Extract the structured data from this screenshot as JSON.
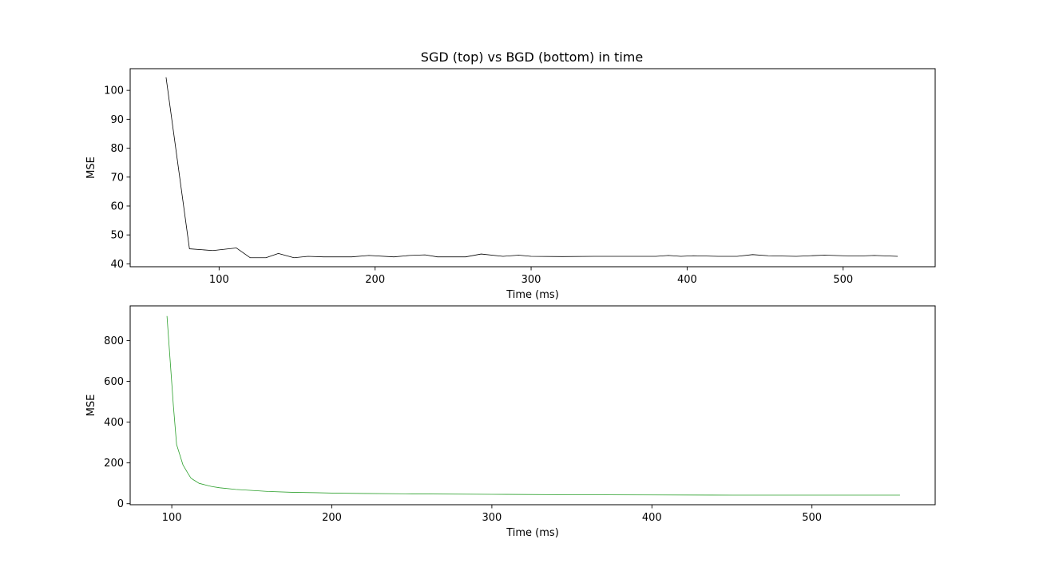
{
  "figure_title": "SGD (top) vs BGD (bottom) in time",
  "chart_data": [
    {
      "type": "line",
      "title": "SGD (top) vs BGD (bottom) in time",
      "xlabel": "Time (ms)",
      "ylabel": "MSE",
      "xlim": [
        43,
        559
      ],
      "ylim": [
        39,
        107.5
      ],
      "xticks": [
        100,
        200,
        300,
        400,
        500
      ],
      "yticks": [
        40,
        50,
        60,
        70,
        80,
        90,
        100
      ],
      "grid": false,
      "series": [
        {
          "color": "#000000",
          "x": [
            66,
            81,
            96,
            111,
            120,
            130,
            138,
            148,
            157,
            167,
            185,
            196,
            212,
            222,
            232,
            240,
            258,
            268,
            282,
            292,
            300,
            320,
            340,
            360,
            380,
            388,
            396,
            404,
            420,
            432,
            442,
            452,
            470,
            488,
            500,
            510,
            520,
            535
          ],
          "y": [
            104.5,
            45.2,
            44.6,
            45.5,
            42.1,
            42.1,
            43.6,
            42.1,
            42.6,
            42.4,
            42.4,
            42.9,
            42.4,
            42.9,
            43.1,
            42.4,
            42.4,
            43.4,
            42.6,
            43.0,
            42.6,
            42.5,
            42.6,
            42.6,
            42.6,
            42.9,
            42.6,
            42.8,
            42.6,
            42.6,
            43.2,
            42.8,
            42.6,
            43.0,
            42.8,
            42.7,
            42.9,
            42.6
          ]
        }
      ]
    },
    {
      "type": "line",
      "title": "",
      "xlabel": "Time (ms)",
      "ylabel": "MSE",
      "xlim": [
        74,
        577
      ],
      "ylim": [
        -5,
        970
      ],
      "xticks": [
        100,
        200,
        300,
        400,
        500
      ],
      "yticks": [
        0,
        200,
        400,
        600,
        800
      ],
      "grid": false,
      "series": [
        {
          "color": "#2ca02c",
          "x": [
            97,
            99,
            101,
            103,
            105,
            107,
            110,
            112,
            114,
            117,
            121,
            125,
            130,
            140,
            150,
            160,
            175,
            190,
            200,
            220,
            250,
            300,
            350,
            400,
            450,
            500,
            555
          ],
          "y": [
            920,
            700,
            480,
            290,
            240,
            190,
            150,
            125,
            115,
            100,
            92,
            84,
            78,
            70,
            65,
            60,
            56,
            54,
            52,
            50,
            48,
            46,
            44,
            43,
            42,
            42,
            42
          ]
        }
      ]
    }
  ]
}
